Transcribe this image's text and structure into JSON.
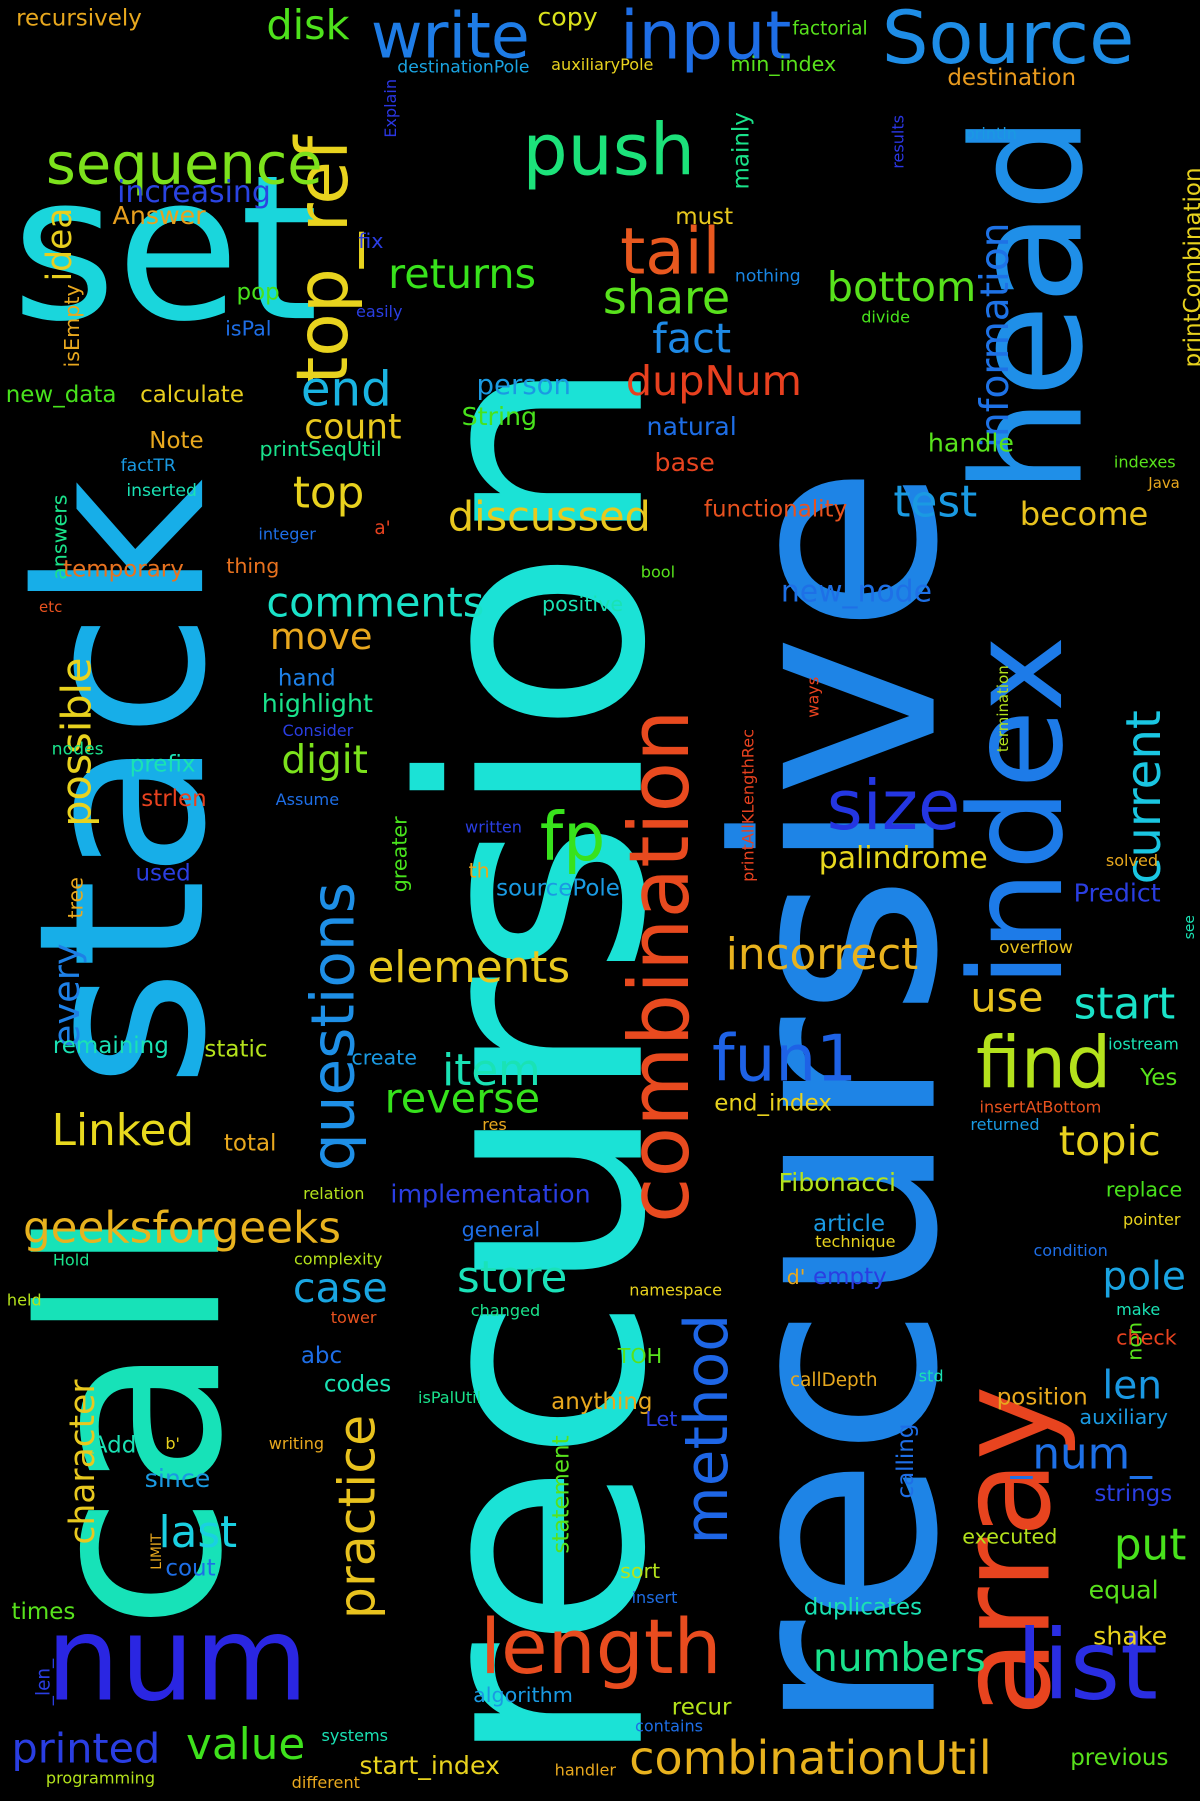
{
  "words": [
    {
      "text": "recursion",
      "color": "#1be2d6",
      "rot": -90
    },
    {
      "text": "recursive",
      "color": "#1e84e6",
      "rot": -90
    },
    {
      "text": "call",
      "color": "#17e2b8",
      "rot": -90
    },
    {
      "text": "stack",
      "color": "#17aee8",
      "rot": -90
    },
    {
      "text": "set",
      "color": "#1ad6dc",
      "rot": 0
    },
    {
      "text": "head",
      "color": "#1f8fe8",
      "rot": -90
    },
    {
      "text": "index",
      "color": "#1d7be8",
      "rot": -90
    },
    {
      "text": "array",
      "color": "#e8441f",
      "rot": -90
    },
    {
      "text": "num",
      "color": "#2a26e2",
      "rot": 0
    },
    {
      "text": "list",
      "color": "#2a2ee2",
      "rot": 0
    },
    {
      "text": "combination",
      "color": "#e84a1f",
      "rot": -90
    },
    {
      "text": "Source",
      "color": "#1e8de6",
      "rot": 0
    },
    {
      "text": "input",
      "color": "#1e6ee6",
      "rot": 0
    },
    {
      "text": "write",
      "color": "#1e7ce6",
      "rot": 0
    },
    {
      "text": "push",
      "color": "#1ce27a",
      "rot": 0
    },
    {
      "text": "length",
      "color": "#e84c1f",
      "rot": 0
    },
    {
      "text": "top_ref",
      "color": "#e8d31e",
      "rot": -90
    },
    {
      "text": "sequence",
      "color": "#7ce21c",
      "rot": 0
    },
    {
      "text": "tail",
      "color": "#e8581f",
      "rot": 0
    },
    {
      "text": "questions",
      "color": "#1e8fe6",
      "rot": -90
    },
    {
      "text": "fp",
      "color": "#38e21c",
      "rot": 0
    },
    {
      "text": "size",
      "color": "#2436e2",
      "rot": 0
    },
    {
      "text": "method",
      "color": "#1e66e6",
      "rot": -90
    },
    {
      "text": "fun1",
      "color": "#1e62e6",
      "rot": 0
    },
    {
      "text": "find",
      "color": "#b4e21c",
      "rot": 0
    },
    {
      "text": "practice",
      "color": "#e8c21e",
      "rot": -90
    },
    {
      "text": "current",
      "color": "#1ac6e2",
      "rot": -90
    },
    {
      "text": "combinationUtil",
      "color": "#e8b21e",
      "rot": 0
    },
    {
      "text": "share",
      "color": "#58e21c",
      "rot": 0
    },
    {
      "text": "disk",
      "color": "#4ee21c",
      "rot": 0
    },
    {
      "text": "copy",
      "color": "#dbe21c",
      "rot": 0
    },
    {
      "text": "end",
      "color": "#1ab4e2",
      "rot": 0
    },
    {
      "text": "count",
      "color": "#e8c81e",
      "rot": 0
    },
    {
      "text": "top",
      "color": "#e8d21e",
      "rot": 0
    },
    {
      "text": "discussed",
      "color": "#e8c81e",
      "rot": 0
    },
    {
      "text": "comments",
      "color": "#1ae2c8",
      "rot": 0
    },
    {
      "text": "dupNum",
      "color": "#e8401f",
      "rot": 0
    },
    {
      "text": "returns",
      "color": "#38e21c",
      "rot": 0
    },
    {
      "text": "bottom",
      "color": "#58e21c",
      "rot": 0
    },
    {
      "text": "fact",
      "color": "#1e8ae6",
      "rot": 0
    },
    {
      "text": "information",
      "color": "#1e72e6",
      "rot": -90
    },
    {
      "text": "test",
      "color": "#1a9ae2",
      "rot": 0
    },
    {
      "text": "incorrect",
      "color": "#e8b21e",
      "rot": 0
    },
    {
      "text": "elements",
      "color": "#e8c81e",
      "rot": 0
    },
    {
      "text": "geeksforgeeks",
      "color": "#e8b21e",
      "rot": 0
    },
    {
      "text": "Linked",
      "color": "#e8d91e",
      "rot": 0
    },
    {
      "text": "reverse",
      "color": "#36e21c",
      "rot": 0
    },
    {
      "text": "item",
      "color": "#1ae2b4",
      "rot": 0
    },
    {
      "text": "digit",
      "color": "#7ce21c",
      "rot": 0
    },
    {
      "text": "move",
      "color": "#e8a81e",
      "rot": 0
    },
    {
      "text": "store",
      "color": "#1ae2b8",
      "rot": 0
    },
    {
      "text": "case",
      "color": "#1aa6e2",
      "rot": 0
    },
    {
      "text": "last",
      "color": "#1ad0e2",
      "rot": 0
    },
    {
      "text": "value",
      "color": "#3ee21c",
      "rot": 0
    },
    {
      "text": "printed",
      "color": "#2a3ee2",
      "rot": 0
    },
    {
      "text": "numbers",
      "color": "#1ae28c",
      "rot": 0
    },
    {
      "text": "topic",
      "color": "#e8d21e",
      "rot": 0
    },
    {
      "text": "start",
      "color": "#1ae2c8",
      "rot": 0
    },
    {
      "text": "use",
      "color": "#e8c21e",
      "rot": 0
    },
    {
      "text": "pole",
      "color": "#1aa4e2",
      "rot": 0
    },
    {
      "text": "len",
      "color": "#1a98e2",
      "rot": 0
    },
    {
      "text": "put",
      "color": "#48e21c",
      "rot": 0
    },
    {
      "text": "_num_",
      "color": "#1e70e6",
      "rot": 0
    },
    {
      "text": "possible",
      "color": "#e8d21e",
      "rot": -90
    },
    {
      "text": "every",
      "color": "#1e80e6",
      "rot": -90
    },
    {
      "text": "character",
      "color": "#e8c81e",
      "rot": -90
    },
    {
      "text": "palindrome",
      "color": "#e8d81e",
      "rot": 0
    },
    {
      "text": "become",
      "color": "#e8c21e",
      "rot": 0
    },
    {
      "text": "new_node",
      "color": "#1e70e6",
      "rot": 0
    },
    {
      "text": "increasing",
      "color": "#2a44e2",
      "rot": 0
    },
    {
      "text": "idea",
      "color": "#e8ce1e",
      "rot": -90
    },
    {
      "text": "Answer",
      "color": "#e8a01e",
      "rot": 0
    },
    {
      "text": "must",
      "color": "#e8c81e",
      "rot": 0
    },
    {
      "text": "mainly",
      "color": "#1ae28a",
      "rot": -90
    },
    {
      "text": "recursively",
      "color": "#e8a81e",
      "rot": 0
    },
    {
      "text": "factorial",
      "color": "#58e21c",
      "rot": 0
    },
    {
      "text": "auxiliaryPole",
      "color": "#e8d21e",
      "rot": 0
    },
    {
      "text": "destinationPole",
      "color": "#1aa4e2",
      "rot": 0
    },
    {
      "text": "min_index",
      "color": "#58e21c",
      "rot": 0
    },
    {
      "text": "destination",
      "color": "#e89a1e",
      "rot": 0
    },
    {
      "text": "Explain",
      "color": "#2a36e2",
      "rot": -90
    },
    {
      "text": "results",
      "color": "#2a36e2",
      "rot": -90
    },
    {
      "text": "println",
      "color": "#1a9ae2",
      "rot": 0
    },
    {
      "text": "printCombination",
      "color": "#e8d21e",
      "rot": -90
    },
    {
      "text": "isEmpty",
      "color": "#e8a81e",
      "rot": -90
    },
    {
      "text": "fix",
      "color": "#2a3ee2",
      "rot": 0
    },
    {
      "text": "pop",
      "color": "#48e21c",
      "rot": 0
    },
    {
      "text": "isPal",
      "color": "#1e6ee6",
      "rot": 0
    },
    {
      "text": "easily",
      "color": "#2a3ee2",
      "rot": 0
    },
    {
      "text": "nothing",
      "color": "#1a86e2",
      "rot": 0
    },
    {
      "text": "divide",
      "color": "#48e21c",
      "rot": 0
    },
    {
      "text": "new_data",
      "color": "#48e21c",
      "rot": 0
    },
    {
      "text": "calculate",
      "color": "#e8ce1e",
      "rot": 0
    },
    {
      "text": "person",
      "color": "#1a9ae2",
      "rot": 0
    },
    {
      "text": "String",
      "color": "#48e21c",
      "rot": 0
    },
    {
      "text": "natural",
      "color": "#1e6ee6",
      "rot": 0
    },
    {
      "text": "handle",
      "color": "#58e21c",
      "rot": 0
    },
    {
      "text": "Note",
      "color": "#e8a81e",
      "rot": 0
    },
    {
      "text": "factTR",
      "color": "#1a9ae2",
      "rot": 0
    },
    {
      "text": "printSeqUtil",
      "color": "#1ae28c",
      "rot": 0
    },
    {
      "text": "inserted",
      "color": "#1ae2b4",
      "rot": 0
    },
    {
      "text": "base",
      "color": "#e8441f",
      "rot": 0
    },
    {
      "text": "functionality",
      "color": "#e8521f",
      "rot": 0
    },
    {
      "text": "indexes",
      "color": "#58e21c",
      "rot": 0
    },
    {
      "text": "Java",
      "color": "#e8a81e",
      "rot": 0
    },
    {
      "text": "answers",
      "color": "#1ae28a",
      "rot": -90
    },
    {
      "text": "integer",
      "color": "#1e6ee6",
      "rot": 0
    },
    {
      "text": "a'",
      "color": "#e8421f",
      "rot": 0
    },
    {
      "text": "temporary",
      "color": "#e8721f",
      "rot": 0
    },
    {
      "text": "thing",
      "color": "#e8721f",
      "rot": 0
    },
    {
      "text": "bool",
      "color": "#58e21c",
      "rot": 0
    },
    {
      "text": "etc",
      "color": "#e8521f",
      "rot": 0
    },
    {
      "text": "positive",
      "color": "#1ae2b4",
      "rot": 0
    },
    {
      "text": "hand",
      "color": "#1e80e6",
      "rot": 0
    },
    {
      "text": "highlight",
      "color": "#1ae28c",
      "rot": 0
    },
    {
      "text": "Consider",
      "color": "#2a3ee2",
      "rot": 0
    },
    {
      "text": "ways",
      "color": "#e8421f",
      "rot": -90
    },
    {
      "text": "termination",
      "color": "#b4e21c",
      "rot": -90
    },
    {
      "text": "nodes",
      "color": "#1ae28c",
      "rot": 0
    },
    {
      "text": "prefix",
      "color": "#1ae2b4",
      "rot": 0
    },
    {
      "text": "strlen",
      "color": "#e8421f",
      "rot": 0
    },
    {
      "text": "Assume",
      "color": "#1e6ee6",
      "rot": 0
    },
    {
      "text": "written",
      "color": "#2a3ee2",
      "rot": 0
    },
    {
      "text": "greater",
      "color": "#48e21c",
      "rot": -90
    },
    {
      "text": "printAllKLengthRec",
      "color": "#e8421f",
      "rot": -90
    },
    {
      "text": "solved",
      "color": "#e8a81e",
      "rot": 0
    },
    {
      "text": "used",
      "color": "#2a3ee2",
      "rot": 0
    },
    {
      "text": "th",
      "color": "#e8a81e",
      "rot": 0
    },
    {
      "text": "sourcePole",
      "color": "#1a9ae2",
      "rot": 0
    },
    {
      "text": "Predict",
      "color": "#2a3ee2",
      "rot": 0
    },
    {
      "text": "tree",
      "color": "#e8a81e",
      "rot": -90
    },
    {
      "text": "overflow",
      "color": "#e8c21e",
      "rot": 0
    },
    {
      "text": "see",
      "color": "#1ae2b4",
      "rot": -90
    },
    {
      "text": "remaining",
      "color": "#1ae2b4",
      "rot": 0
    },
    {
      "text": "static",
      "color": "#b4e21c",
      "rot": 0
    },
    {
      "text": "create",
      "color": "#1a9ae2",
      "rot": 0
    },
    {
      "text": "iostream",
      "color": "#1ae2b4",
      "rot": 0
    },
    {
      "text": "Yes",
      "color": "#58e21c",
      "rot": 0
    },
    {
      "text": "end_index",
      "color": "#e8d21e",
      "rot": 0
    },
    {
      "text": "insertAtBottom",
      "color": "#e8521f",
      "rot": 0
    },
    {
      "text": "res",
      "color": "#e8a81e",
      "rot": 0
    },
    {
      "text": "returned",
      "color": "#1a9ae2",
      "rot": 0
    },
    {
      "text": "total",
      "color": "#e8a81e",
      "rot": 0
    },
    {
      "text": "relation",
      "color": "#b4e21c",
      "rot": 0
    },
    {
      "text": "implementation",
      "color": "#2a3ee2",
      "rot": 0
    },
    {
      "text": "Fibonacci",
      "color": "#b4e21c",
      "rot": 0
    },
    {
      "text": "replace",
      "color": "#48e21c",
      "rot": 0
    },
    {
      "text": "general",
      "color": "#1e6ee6",
      "rot": 0
    },
    {
      "text": "article",
      "color": "#1a9ae2",
      "rot": 0
    },
    {
      "text": "technique",
      "color": "#e8d21e",
      "rot": 0
    },
    {
      "text": "pointer",
      "color": "#e8d21e",
      "rot": 0
    },
    {
      "text": "Hold",
      "color": "#1ae28c",
      "rot": 0
    },
    {
      "text": "complexity",
      "color": "#b4e21c",
      "rot": 0
    },
    {
      "text": "condition",
      "color": "#1e6ee6",
      "rot": 0
    },
    {
      "text": "held",
      "color": "#b4e21c",
      "rot": 0
    },
    {
      "text": "tower",
      "color": "#e8521f",
      "rot": 0
    },
    {
      "text": "changed",
      "color": "#1ae28c",
      "rot": 0
    },
    {
      "text": "namespace",
      "color": "#e8d21e",
      "rot": 0
    },
    {
      "text": "d'",
      "color": "#e8a81e",
      "rot": 0
    },
    {
      "text": "empty",
      "color": "#2a3ee2",
      "rot": 0
    },
    {
      "text": "non",
      "color": "#58e21c",
      "rot": -90
    },
    {
      "text": "make",
      "color": "#1ae2b4",
      "rot": 0
    },
    {
      "text": "check",
      "color": "#e8421f",
      "rot": 0
    },
    {
      "text": "abc",
      "color": "#1e6ee6",
      "rot": 0
    },
    {
      "text": "codes",
      "color": "#1ae2b4",
      "rot": 0
    },
    {
      "text": "TOH",
      "color": "#58e21c",
      "rot": 0
    },
    {
      "text": "isPalUtil",
      "color": "#1ae28c",
      "rot": 0
    },
    {
      "text": "statement",
      "color": "#58e21c",
      "rot": -90
    },
    {
      "text": "anything",
      "color": "#e8a81e",
      "rot": 0
    },
    {
      "text": "callDepth",
      "color": "#e8a81e",
      "rot": 0
    },
    {
      "text": "std",
      "color": "#1ae2b4",
      "rot": 0
    },
    {
      "text": "position",
      "color": "#e8a81e",
      "rot": 0
    },
    {
      "text": "auxiliary",
      "color": "#1a9ae2",
      "rot": 0
    },
    {
      "text": "Add",
      "color": "#1ae2b4",
      "rot": 0
    },
    {
      "text": "b'",
      "color": "#e8d21e",
      "rot": 0
    },
    {
      "text": "writing",
      "color": "#e8a81e",
      "rot": 0
    },
    {
      "text": "Let",
      "color": "#2a3ee2",
      "rot": 0
    },
    {
      "text": "calling",
      "color": "#1e6ee6",
      "rot": -90
    },
    {
      "text": "strings",
      "color": "#2a3ee2",
      "rot": 0
    },
    {
      "text": "since",
      "color": "#1a9ae2",
      "rot": 0
    },
    {
      "text": "LIMIT",
      "color": "#e8a81e",
      "rot": -90
    },
    {
      "text": "cout",
      "color": "#1e6ee6",
      "rot": 0
    },
    {
      "text": "executed",
      "color": "#b4e21c",
      "rot": 0
    },
    {
      "text": "sort",
      "color": "#b4e21c",
      "rot": 0
    },
    {
      "text": "insert",
      "color": "#1e6ee6",
      "rot": 0
    },
    {
      "text": "equal",
      "color": "#58e21c",
      "rot": 0
    },
    {
      "text": "duplicates",
      "color": "#1ae2b4",
      "rot": 0
    },
    {
      "text": "shake",
      "color": "#e8d21e",
      "rot": 0
    },
    {
      "text": "times",
      "color": "#58e21c",
      "rot": 0
    },
    {
      "text": "_len_",
      "color": "#2a3ee2",
      "rot": -90
    },
    {
      "text": "algorithm",
      "color": "#1a9ae2",
      "rot": 0
    },
    {
      "text": "recur",
      "color": "#b4e21c",
      "rot": 0
    },
    {
      "text": "contains",
      "color": "#1e6ee6",
      "rot": 0
    },
    {
      "text": "systems",
      "color": "#1ae2b4",
      "rot": 0
    },
    {
      "text": "start_index",
      "color": "#e8d21e",
      "rot": 0
    },
    {
      "text": "handler",
      "color": "#e8a81e",
      "rot": 0
    },
    {
      "text": "previous",
      "color": "#58e21c",
      "rot": 0
    },
    {
      "text": "programming",
      "color": "#b4e21c",
      "rot": 0
    },
    {
      "text": "different",
      "color": "#e8a81e",
      "rot": 0
    }
  ]
}
